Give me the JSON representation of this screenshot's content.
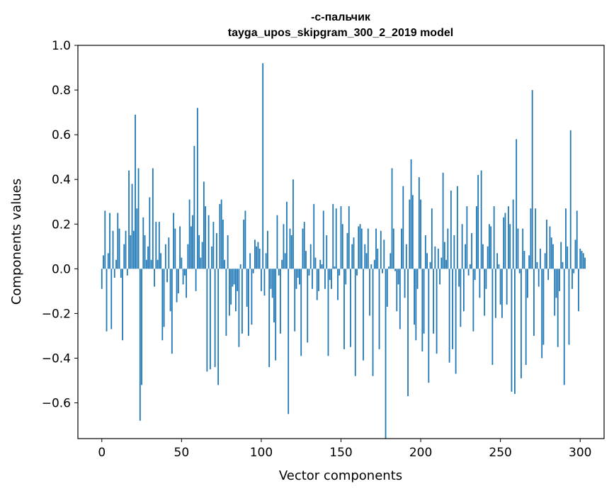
{
  "chart_data": {
    "type": "bar",
    "title_line1": "-с-пальчик",
    "title_line2": "tayga_upos_skipgram_300_2_2019 model",
    "xlabel": "Vector components",
    "ylabel": "Components values",
    "xlim": [
      -15,
      315
    ],
    "ylim": [
      -0.76,
      1.0
    ],
    "xticks": [
      0,
      50,
      100,
      150,
      200,
      250,
      300
    ],
    "xtick_labels": [
      "0",
      "50",
      "100",
      "150",
      "200",
      "250",
      "300"
    ],
    "yticks": [
      -0.6,
      -0.4,
      -0.2,
      0.0,
      0.2,
      0.4,
      0.6,
      0.8,
      1.0
    ],
    "ytick_labels": [
      "−0.6",
      "−0.4",
      "−0.2",
      "0.0",
      "0.2",
      "0.4",
      "0.6",
      "0.8",
      "1.0"
    ],
    "grid": false,
    "bar_color": "#1f77b4",
    "values": [
      -0.09,
      0.06,
      0.26,
      -0.28,
      0.07,
      0.25,
      -0.27,
      0.17,
      -0.04,
      0.04,
      0.25,
      0.18,
      -0.04,
      -0.32,
      0.11,
      0.17,
      -0.03,
      0.44,
      0.15,
      0.38,
      0.17,
      0.69,
      0.27,
      0.45,
      -0.68,
      -0.52,
      0.23,
      0.15,
      0.04,
      0.1,
      0.32,
      0.04,
      0.45,
      -0.08,
      0.21,
      0.04,
      0.21,
      0.07,
      -0.32,
      -0.26,
      0.11,
      -0.06,
      0.14,
      -0.19,
      -0.38,
      0.25,
      0.18,
      -0.15,
      -0.11,
      0.19,
      0.05,
      -0.07,
      -0.03,
      -0.13,
      0.11,
      0.31,
      0.19,
      0.24,
      0.55,
      -0.1,
      0.72,
      0.15,
      0.05,
      0.12,
      0.39,
      0.28,
      -0.46,
      0.24,
      -0.45,
      0.1,
      0.21,
      -0.44,
      0.16,
      -0.52,
      0.29,
      0.31,
      0.22,
      0.04,
      -0.3,
      0.15,
      -0.21,
      -0.16,
      -0.08,
      -0.07,
      -0.19,
      -0.1,
      -0.35,
      0.02,
      -0.29,
      0.22,
      0.26,
      -0.17,
      -0.3,
      0.07,
      -0.25,
      -0.02,
      0.13,
      0.1,
      0.12,
      0.09,
      -0.1,
      0.92,
      -0.12,
      0.07,
      0.17,
      -0.44,
      -0.09,
      -0.13,
      -0.24,
      -0.41,
      0.24,
      -0.03,
      -0.29,
      0.04,
      0.2,
      0.07,
      0.3,
      -0.65,
      0.18,
      0.15,
      0.4,
      -0.28,
      -0.09,
      -0.04,
      -0.07,
      -0.39,
      0.18,
      0.21,
      0.08,
      -0.33,
      -0.03,
      0.11,
      -0.09,
      0.29,
      0.05,
      -0.14,
      -0.1,
      0.04,
      0.02,
      0.26,
      -0.09,
      0.15,
      -0.39,
      -0.05,
      -0.09,
      0.29,
      0.01,
      0.27,
      -0.14,
      -0.03,
      0.28,
      0.2,
      -0.36,
      -0.07,
      0.16,
      0.28,
      -0.35,
      0.11,
      0.14,
      -0.48,
      -0.03,
      0.19,
      0.2,
      0.18,
      -0.41,
      0.11,
      0.07,
      0.18,
      -0.21,
      0.02,
      -0.48,
      0.04,
      0.18,
      0.09,
      -0.36,
      0.17,
      -0.02,
      0.13,
      -0.76,
      -0.17,
      0.01,
      0.07,
      0.45,
      0.18,
      -0.01,
      -0.19,
      -0.07,
      -0.27,
      0.18,
      0.37,
      -0.13,
      0.11,
      -0.57,
      0.31,
      0.49,
      0.33,
      -0.25,
      -0.32,
      -0.09,
      0.41,
      0.31,
      -0.37,
      -0.29,
      0.15,
      0.07,
      -0.51,
      0.03,
      0.27,
      -0.29,
      0.1,
      -0.38,
      0.09,
      -0.07,
      0.05,
      0.43,
      0.12,
      0.04,
      0.18,
      -0.42,
      0.35,
      -0.36,
      0.15,
      -0.47,
      0.37,
      -0.08,
      -0.26,
      0.2,
      -0.19,
      0.11,
      0.28,
      -0.03,
      0.02,
      0.16,
      -0.28,
      -0.05,
      0.28,
      0.42,
      -0.13,
      0.44,
      0.11,
      -0.21,
      -0.09,
      0.1,
      0.2,
      0.19,
      -0.43,
      0.28,
      -0.22,
      0.07,
      0.02,
      -0.16,
      -0.22,
      0.23,
      0.25,
      -0.16,
      0.28,
      0.2,
      -0.55,
      0.31,
      -0.56,
      0.58,
      0.18,
      -0.02,
      -0.49,
      0.18,
      0.08,
      -0.43,
      -0.13,
      0.06,
      0.27,
      0.8,
      -0.3,
      0.27,
      0.03,
      -0.08,
      0.09,
      -0.4,
      -0.34,
      0.07,
      0.22,
      -0.05,
      0.19,
      0.14,
      0.11,
      -0.21,
      -0.13,
      -0.35,
      -0.1,
      0.12,
      0.03,
      -0.52,
      0.27,
      0.1,
      -0.34,
      0.62,
      -0.09,
      -0.02,
      0.13,
      0.26,
      -0.19,
      0.09,
      0.08,
      0.07,
      0.05
    ]
  }
}
